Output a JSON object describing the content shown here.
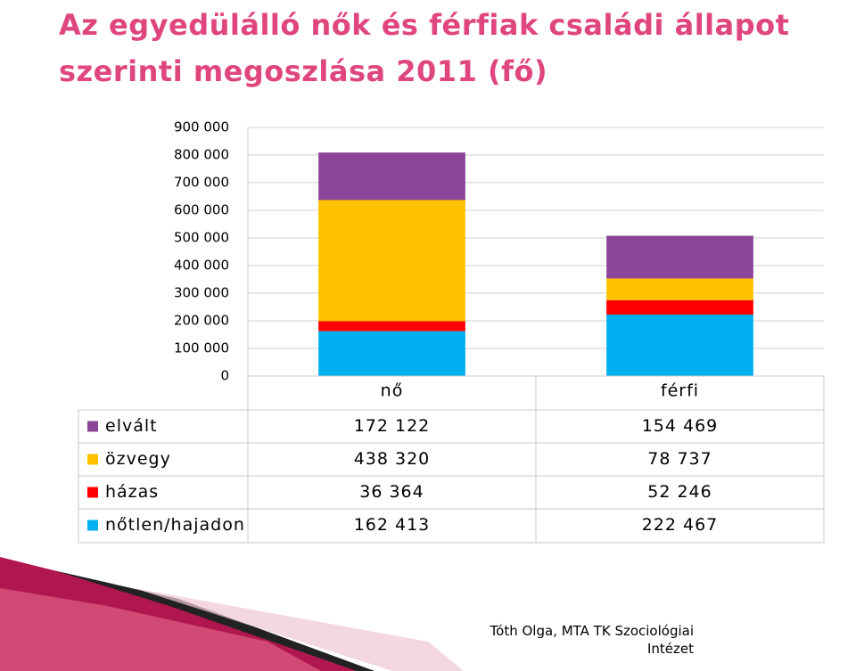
{
  "chart_data": {
    "type": "bar",
    "stacked": true,
    "title": "Az egyedülálló nők és férfiak családi állapot szerinti megoszlása 2011 (fő)",
    "categories": [
      "nő",
      "férfi"
    ],
    "series": [
      {
        "name": "nőtlen/hajadon",
        "color": "#00b0f0",
        "values": [
          162413,
          222467
        ],
        "value_labels": [
          "162 413",
          "222 467"
        ]
      },
      {
        "name": "házas",
        "color": "#ff0000",
        "values": [
          36364,
          52246
        ],
        "value_labels": [
          "36 364",
          "52 246"
        ]
      },
      {
        "name": "özvegy",
        "color": "#ffc000",
        "values": [
          438320,
          78737
        ],
        "value_labels": [
          "438 320",
          "78 737"
        ]
      },
      {
        "name": "elvált",
        "color": "#8b4599",
        "values": [
          172122,
          154469
        ],
        "value_labels": [
          "172 122",
          "154 469"
        ]
      }
    ],
    "ylim": [
      0,
      900000
    ],
    "yticks": [
      0,
      {
        "value": 100000,
        "label": "100 000"
      },
      {
        "value": 200000,
        "label": "200 000"
      },
      {
        "value": 300000,
        "label": "300 000"
      },
      {
        "value": 400000,
        "label": "400 000"
      },
      {
        "value": 500000,
        "label": "500 000"
      },
      {
        "value": 600000,
        "label": "600 000"
      },
      {
        "value": 700000,
        "label": "700 000"
      },
      {
        "value": 800000,
        "label": "800 000"
      },
      {
        "value": 900000,
        "label": "900 000"
      }
    ],
    "grid": true
  },
  "footer": "Tóth Olga, MTA TK Szociológiai Intézet"
}
